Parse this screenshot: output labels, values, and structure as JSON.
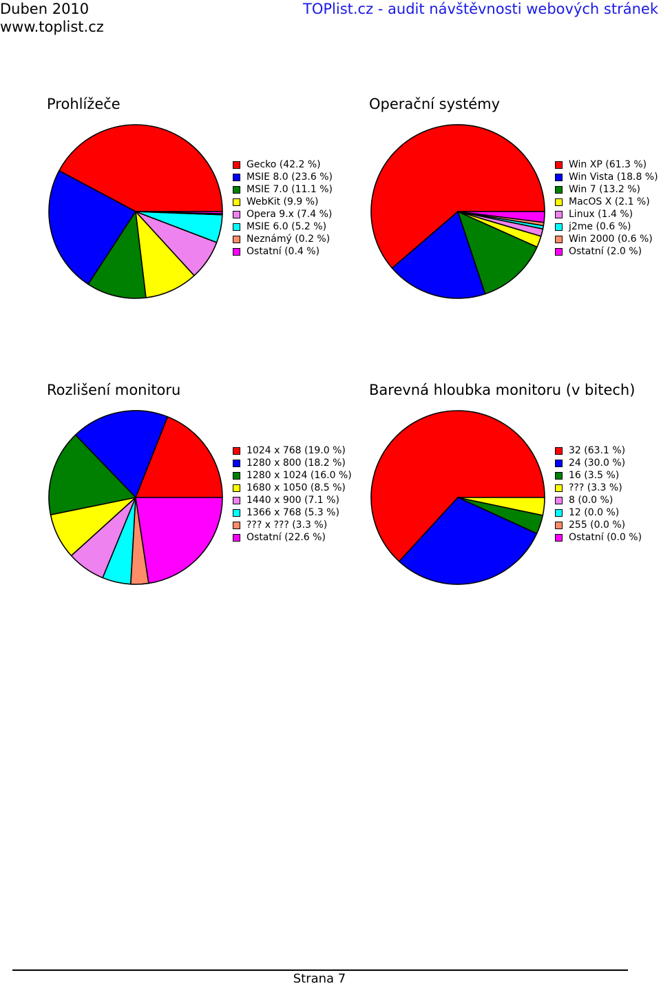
{
  "header": {
    "date": "Duben 2010",
    "site": "www.toplist.cz",
    "title": "TOPlist.cz - audit návštěvnosti webových stránek"
  },
  "footer": {
    "page": "Strana 7"
  },
  "chart_data": [
    {
      "type": "pie",
      "title": "Prohlížeče",
      "legend": "right",
      "slices": [
        {
          "label": "Gecko (42.2 %)",
          "value": 42.2,
          "color": "#ff0000"
        },
        {
          "label": "MSIE 8.0 (23.6 %)",
          "value": 23.6,
          "color": "#0000ff"
        },
        {
          "label": "MSIE 7.0 (11.1 %)",
          "value": 11.1,
          "color": "#008000"
        },
        {
          "label": "WebKit (9.9 %)",
          "value": 9.9,
          "color": "#ffff00"
        },
        {
          "label": "Opera 9.x (7.4 %)",
          "value": 7.4,
          "color": "#ee82ee"
        },
        {
          "label": "MSIE 6.0 (5.2 %)",
          "value": 5.2,
          "color": "#00ffff"
        },
        {
          "label": "Neznámý (0.2 %)",
          "value": 0.2,
          "color": "#ff8c69"
        },
        {
          "label": "Ostatní (0.4 %)",
          "value": 0.4,
          "color": "#ff00ff"
        }
      ]
    },
    {
      "type": "pie",
      "title": "Operační systémy",
      "legend": "right",
      "slices": [
        {
          "label": "Win XP (61.3 %)",
          "value": 61.3,
          "color": "#ff0000"
        },
        {
          "label": "Win Vista (18.8 %)",
          "value": 18.8,
          "color": "#0000ff"
        },
        {
          "label": "Win 7 (13.2 %)",
          "value": 13.2,
          "color": "#008000"
        },
        {
          "label": "MacOS X (2.1 %)",
          "value": 2.1,
          "color": "#ffff00"
        },
        {
          "label": "Linux (1.4 %)",
          "value": 1.4,
          "color": "#ee82ee"
        },
        {
          "label": "j2me (0.6 %)",
          "value": 0.6,
          "color": "#00ffff"
        },
        {
          "label": "Win 2000 (0.6 %)",
          "value": 0.6,
          "color": "#ff8c69"
        },
        {
          "label": "Ostatní (2.0 %)",
          "value": 2.0,
          "color": "#ff00ff"
        }
      ]
    },
    {
      "type": "pie",
      "title": "Rozlišení monitoru",
      "legend": "right",
      "slices": [
        {
          "label": "1024 x 768 (19.0 %)",
          "value": 19.0,
          "color": "#ff0000"
        },
        {
          "label": "1280 x 800 (18.2 %)",
          "value": 18.2,
          "color": "#0000ff"
        },
        {
          "label": "1280 x 1024 (16.0 %)",
          "value": 16.0,
          "color": "#008000"
        },
        {
          "label": "1680 x 1050 (8.5 %)",
          "value": 8.5,
          "color": "#ffff00"
        },
        {
          "label": "1440 x 900 (7.1 %)",
          "value": 7.1,
          "color": "#ee82ee"
        },
        {
          "label": "1366 x 768 (5.3 %)",
          "value": 5.3,
          "color": "#00ffff"
        },
        {
          "label": "??? x ??? (3.3 %)",
          "value": 3.3,
          "color": "#ff8c69"
        },
        {
          "label": "Ostatní (22.6 %)",
          "value": 22.6,
          "color": "#ff00ff"
        }
      ]
    },
    {
      "type": "pie",
      "title": "Barevná hloubka monitoru (v bitech)",
      "legend": "right",
      "slices": [
        {
          "label": "32 (63.1 %)",
          "value": 63.1,
          "color": "#ff0000"
        },
        {
          "label": "24 (30.0 %)",
          "value": 30.0,
          "color": "#0000ff"
        },
        {
          "label": "16 (3.5 %)",
          "value": 3.5,
          "color": "#008000"
        },
        {
          "label": "??? (3.3 %)",
          "value": 3.3,
          "color": "#ffff00"
        },
        {
          "label": "8 (0.0 %)",
          "value": 0.0,
          "color": "#ee82ee"
        },
        {
          "label": "12 (0.0 %)",
          "value": 0.0,
          "color": "#00ffff"
        },
        {
          "label": "255 (0.0 %)",
          "value": 0.0,
          "color": "#ff8c69"
        },
        {
          "label": "Ostatní (0.0 %)",
          "value": 0.0,
          "color": "#ff00ff"
        }
      ]
    }
  ]
}
